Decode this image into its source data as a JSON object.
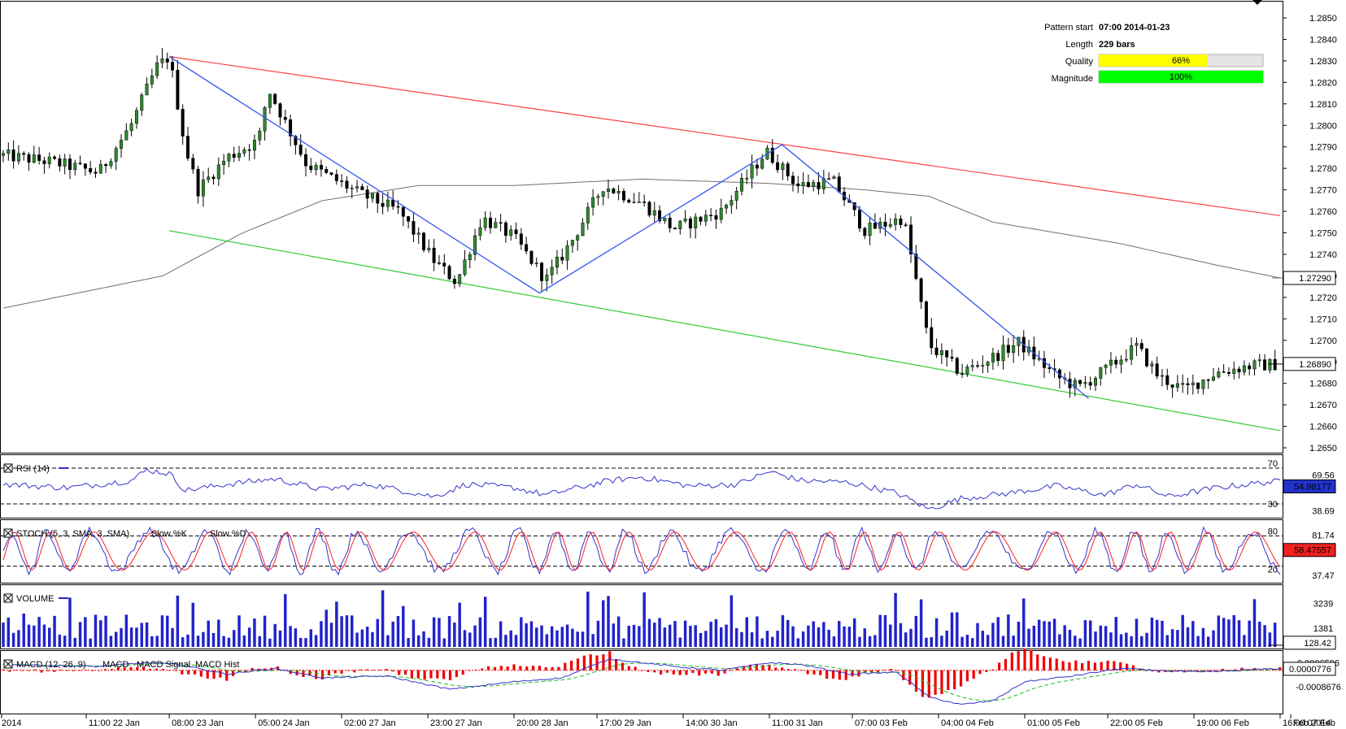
{
  "info": {
    "pattern_start_label": "Pattern start",
    "pattern_start_value": "07:00 2014-01-23",
    "length_label": "Length",
    "length_value": "229 bars",
    "quality_label": "Quality",
    "quality_value": "66%",
    "quality_fraction": 0.66,
    "magnitude_label": "Magnitude",
    "magnitude_value": "100%",
    "magnitude_fraction": 1.0
  },
  "colors": {
    "up_candle": "#2e8b2e",
    "down_candle": "#000000",
    "resistance": "#ff4040",
    "support": "#33cc33",
    "zigzag": "#3355ee",
    "ma": "#707070",
    "indicator_line": "#3333cc",
    "stoch_d": "#ff2020",
    "volume": "#2222cc",
    "macd_hist": "#ee0000",
    "macd_signal": "#22bb22",
    "quality_bar": "#ffff00",
    "magnitude_bar": "#00ff00"
  },
  "chart_data": [
    {
      "type": "candlestick",
      "name": "price",
      "ylim": [
        1.2645,
        1.2855
      ],
      "yticks": [
        "1.2850",
        "1.2840",
        "1.2830",
        "1.2820",
        "1.2810",
        "1.2800",
        "1.2790",
        "1.2780",
        "1.2770",
        "1.2760",
        "1.2750",
        "1.2740",
        "1.2730",
        "1.2720",
        "1.2710",
        "1.2700",
        "1.2690",
        "1.2680",
        "1.2670",
        "1.2660",
        "1.2650"
      ],
      "ytick_values": [
        1.285,
        1.284,
        1.283,
        1.282,
        1.281,
        1.28,
        1.279,
        1.278,
        1.277,
        1.276,
        1.275,
        1.274,
        1.273,
        1.272,
        1.271,
        1.27,
        1.269,
        1.268,
        1.267,
        1.266,
        1.265
      ],
      "bar_count": 249,
      "anchor_prices": [
        [
          0,
          1.2786
        ],
        [
          15,
          1.2783
        ],
        [
          30,
          1.2778
        ],
        [
          40,
          1.28
        ],
        [
          48,
          1.2827
        ],
        [
          52,
          1.2832
        ],
        [
          57,
          1.279
        ],
        [
          61,
          1.277
        ],
        [
          70,
          1.2785
        ],
        [
          80,
          1.2793
        ],
        [
          83,
          1.2817
        ],
        [
          95,
          1.2782
        ],
        [
          112,
          1.2768
        ],
        [
          124,
          1.276
        ],
        [
          135,
          1.2737
        ],
        [
          142,
          1.2727
        ],
        [
          150,
          1.2757
        ],
        [
          160,
          1.2748
        ],
        [
          170,
          1.2728
        ],
        [
          178,
          1.2746
        ],
        [
          188,
          1.2772
        ],
        [
          200,
          1.2764
        ],
        [
          210,
          1.2752
        ],
        [
          225,
          1.276
        ],
        [
          239,
          1.2788
        ],
        [
          249,
          1.2772
        ],
        [
          260,
          1.2774
        ],
        [
          270,
          1.2751
        ],
        [
          282,
          1.2757
        ],
        [
          290,
          1.2698
        ],
        [
          300,
          1.2685
        ],
        [
          310,
          1.2692
        ],
        [
          318,
          1.2699
        ],
        [
          330,
          1.2683
        ],
        [
          337,
          1.2678
        ],
        [
          345,
          1.2686
        ],
        [
          355,
          1.2697
        ],
        [
          362,
          1.2683
        ],
        [
          370,
          1.2677
        ],
        [
          380,
          1.2685
        ],
        [
          390,
          1.2688
        ],
        [
          400,
          1.2689
        ]
      ],
      "current_price_label": "1.26890",
      "ma_label": "1.27290",
      "moving_average": [
        [
          0,
          1.2715
        ],
        [
          50,
          1.273
        ],
        [
          75,
          1.275
        ],
        [
          100,
          1.2765
        ],
        [
          130,
          1.2772
        ],
        [
          160,
          1.2772
        ],
        [
          200,
          1.2775
        ],
        [
          240,
          1.2773
        ],
        [
          270,
          1.277
        ],
        [
          290,
          1.2767
        ],
        [
          310,
          1.2755
        ],
        [
          350,
          1.2745
        ],
        [
          380,
          1.2735
        ],
        [
          400,
          1.2729
        ]
      ],
      "resistance_line": {
        "from": [
          52,
          1.2832
        ],
        "to": [
          400,
          1.2758
        ]
      },
      "support_line": {
        "from": [
          52,
          1.2751
        ],
        "to": [
          400,
          1.2658
        ]
      },
      "zigzag": [
        [
          52,
          1.2832
        ],
        [
          168,
          1.2722
        ],
        [
          244,
          1.2791
        ],
        [
          340,
          1.2673
        ]
      ],
      "x_labels": [
        "2014",
        "11:00 22 Jan",
        "08:00 23 Jan",
        "05:00 24 Jan",
        "02:00 27 Jan",
        "23:00 27 Jan",
        "20:00 28 Jan",
        "17:00 29 Jan",
        "14:00 30 Jan",
        "11:00 31 Jan",
        "07:00 03 Feb",
        "04:00 04 Feb",
        "01:00 05 Feb",
        "22:00 05 Feb",
        "19:00 06 Feb",
        "16:00 07 Feb",
        "Feb 2014"
      ],
      "x_label_bars": [
        0,
        26,
        52,
        79,
        106,
        133,
        160,
        186,
        213,
        240,
        266,
        293,
        320,
        346,
        373,
        400,
        400
      ]
    },
    {
      "type": "line",
      "name": "RSI",
      "title": "RSI (14)",
      "ylim": [
        20,
        80
      ],
      "levels": [
        70,
        30
      ],
      "level_labels": [
        "70",
        "30"
      ],
      "scale_labels": [
        "69.56",
        "38.69"
      ],
      "current_label": "54.98177",
      "anchors": [
        [
          0,
          52
        ],
        [
          20,
          48
        ],
        [
          40,
          56
        ],
        [
          45,
          68
        ],
        [
          52,
          64
        ],
        [
          57,
          45
        ],
        [
          70,
          52
        ],
        [
          85,
          58
        ],
        [
          100,
          46
        ],
        [
          115,
          52
        ],
        [
          135,
          38
        ],
        [
          145,
          52
        ],
        [
          160,
          48
        ],
        [
          170,
          40
        ],
        [
          190,
          56
        ],
        [
          200,
          60
        ],
        [
          215,
          50
        ],
        [
          230,
          52
        ],
        [
          240,
          66
        ],
        [
          250,
          56
        ],
        [
          265,
          54
        ],
        [
          280,
          42
        ],
        [
          290,
          24
        ],
        [
          300,
          36
        ],
        [
          315,
          42
        ],
        [
          330,
          50
        ],
        [
          345,
          40
        ],
        [
          355,
          52
        ],
        [
          365,
          38
        ],
        [
          380,
          48
        ],
        [
          395,
          54
        ],
        [
          400,
          55
        ]
      ]
    },
    {
      "type": "line",
      "name": "Stochastic",
      "title": "STOCH (5, 3, SMA, 3, SMA)",
      "series": [
        {
          "name": "Slow %K",
          "values_note": ""
        },
        {
          "name": "Slow %D"
        }
      ],
      "ylim": [
        0,
        100
      ],
      "levels": [
        80,
        20
      ],
      "level_labels": [
        "80",
        "20"
      ],
      "scale_labels": [
        "81.74",
        "37.47"
      ],
      "current_label": "58.47557"
    },
    {
      "type": "bar",
      "name": "Volume",
      "title": "VOLUME",
      "ylim": [
        0,
        4400
      ],
      "scale_labels": [
        "3239",
        "1381"
      ],
      "scale_values": [
        3239,
        1381
      ],
      "current_label": "128.42"
    },
    {
      "type": "bar",
      "name": "MACD",
      "title": "MACD (12, 26, 9)",
      "series": [
        {
          "name": "MACD"
        },
        {
          "name": "MACD Signal"
        },
        {
          "name": "MACD Hist"
        }
      ],
      "scale_labels": [
        "0.0006596",
        "-0.0008676"
      ],
      "scale_values": [
        0.0006596,
        -0.0008676
      ],
      "current_label": "0.0000776",
      "anchors": [
        [
          0,
          0.0003
        ],
        [
          30,
          0.0002
        ],
        [
          45,
          0.0004
        ],
        [
          55,
          0.0003
        ],
        [
          70,
          -0.0002
        ],
        [
          85,
          0.0001
        ],
        [
          100,
          -0.0004
        ],
        [
          120,
          -0.0003
        ],
        [
          140,
          -0.001
        ],
        [
          160,
          -0.0006
        ],
        [
          175,
          -0.0004
        ],
        [
          190,
          0.0006
        ],
        [
          210,
          0.0002
        ],
        [
          225,
          0.0
        ],
        [
          240,
          0.0004
        ],
        [
          250,
          0.0003
        ],
        [
          265,
          -0.0002
        ],
        [
          280,
          -0.0001
        ],
        [
          290,
          -0.0014
        ],
        [
          300,
          -0.0018
        ],
        [
          310,
          -0.0016
        ],
        [
          320,
          -0.0006
        ],
        [
          335,
          -0.0003
        ],
        [
          350,
          0.0001
        ],
        [
          360,
          0.0
        ],
        [
          375,
          -0.0001
        ],
        [
          400,
          0.0001
        ]
      ]
    }
  ]
}
